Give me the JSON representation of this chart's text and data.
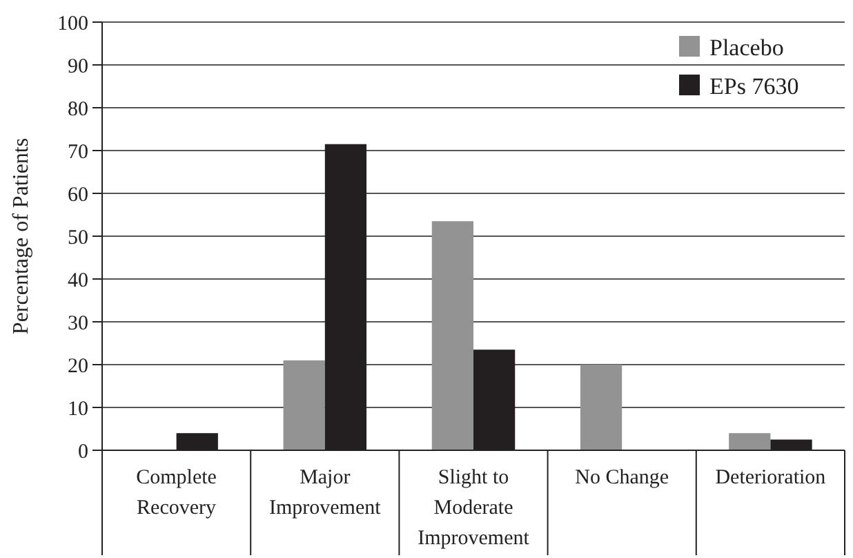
{
  "chart_data": {
    "type": "bar",
    "ylabel": "Percentage of Patients",
    "categories": [
      "Complete Recovery",
      "Major Improvement",
      "Slight to Moderate Improvement",
      "No Change",
      "Deterioration"
    ],
    "series": [
      {
        "name": "Placebo",
        "color": "#939393",
        "values": [
          0,
          21,
          53.5,
          20,
          4
        ]
      },
      {
        "name": "EPs 7630",
        "color": "#231f20",
        "values": [
          4,
          71.5,
          23.5,
          0,
          2.5
        ]
      }
    ],
    "ylim": [
      0,
      100
    ],
    "yticks": [
      0,
      10,
      20,
      30,
      40,
      50,
      60,
      70,
      80,
      90,
      100
    ],
    "grid": "y",
    "legend": "top right"
  }
}
